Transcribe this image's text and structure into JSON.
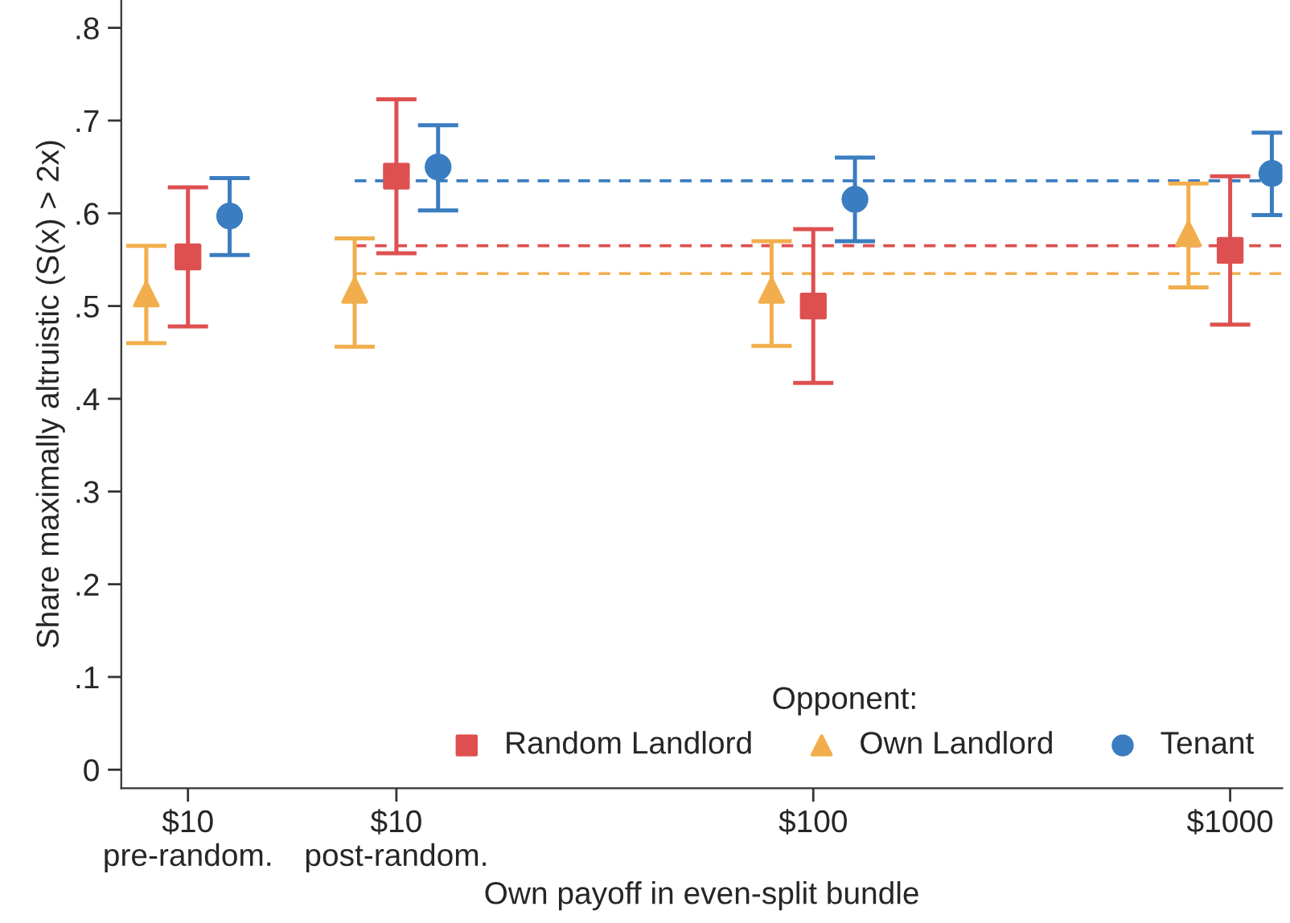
{
  "chart_data": {
    "type": "scatter",
    "xlabel": "Own payoff in even-split bundle",
    "ylabel": "Share maximally altruistic (S(x) > 2x)",
    "legend_title": "Opponent:",
    "legend": "bottom right",
    "categories": [
      "$10\npre-random.",
      "$10\npost-random.",
      null,
      "$100",
      null,
      "$1000"
    ],
    "ylim": [
      -0.02,
      0.83
    ],
    "yticks": [
      0,
      {
        "value": 0.1,
        "label": ".1"
      },
      {
        "value": 0.2,
        "label": ".2"
      },
      {
        "value": 0.3,
        "label": ".3"
      },
      {
        "value": 0.4,
        "label": ".4"
      },
      {
        "value": 0.5,
        "label": ".5"
      },
      {
        "value": 0.6,
        "label": ".6"
      },
      {
        "value": 0.7,
        "label": ".7"
      },
      {
        "value": 0.8,
        "label": ".8"
      }
    ],
    "ref_lines": [
      {
        "axis": "y",
        "value": 0.635,
        "color": "#3a7dc0",
        "line_style": "dashed"
      },
      {
        "axis": "y",
        "value": 0.565,
        "color": "#de5050",
        "line_style": "dashed"
      },
      {
        "axis": "y",
        "value": 0.535,
        "color": "#f2ae4c",
        "line_style": "dashed"
      }
    ],
    "series": [
      {
        "name": "Random Landlord",
        "color": "#de5050",
        "marker": "square",
        "values": [
          0.553,
          0.64,
          null,
          0.5,
          null,
          0.56
        ],
        "errors": [
          [
            0.478,
            0.628
          ],
          [
            0.557,
            0.723
          ],
          null,
          [
            0.417,
            0.583
          ],
          null,
          [
            0.48,
            0.64
          ]
        ]
      },
      {
        "name": "Own Landlord",
        "color": "#f2ae4c",
        "marker": "triangle",
        "values": [
          0.513,
          0.517,
          null,
          0.517,
          null,
          0.578
        ],
        "errors": [
          [
            0.46,
            0.565
          ],
          [
            0.456,
            0.573
          ],
          null,
          [
            0.457,
            0.57
          ],
          null,
          [
            0.52,
            0.632
          ]
        ]
      },
      {
        "name": "Tenant",
        "color": "#3a7dc0",
        "marker": "circle",
        "values": [
          0.597,
          0.65,
          null,
          0.615,
          null,
          0.643
        ],
        "errors": [
          [
            0.555,
            0.638
          ],
          [
            0.603,
            0.695
          ],
          null,
          [
            0.57,
            0.66
          ],
          null,
          [
            0.598,
            0.687
          ]
        ]
      }
    ]
  }
}
